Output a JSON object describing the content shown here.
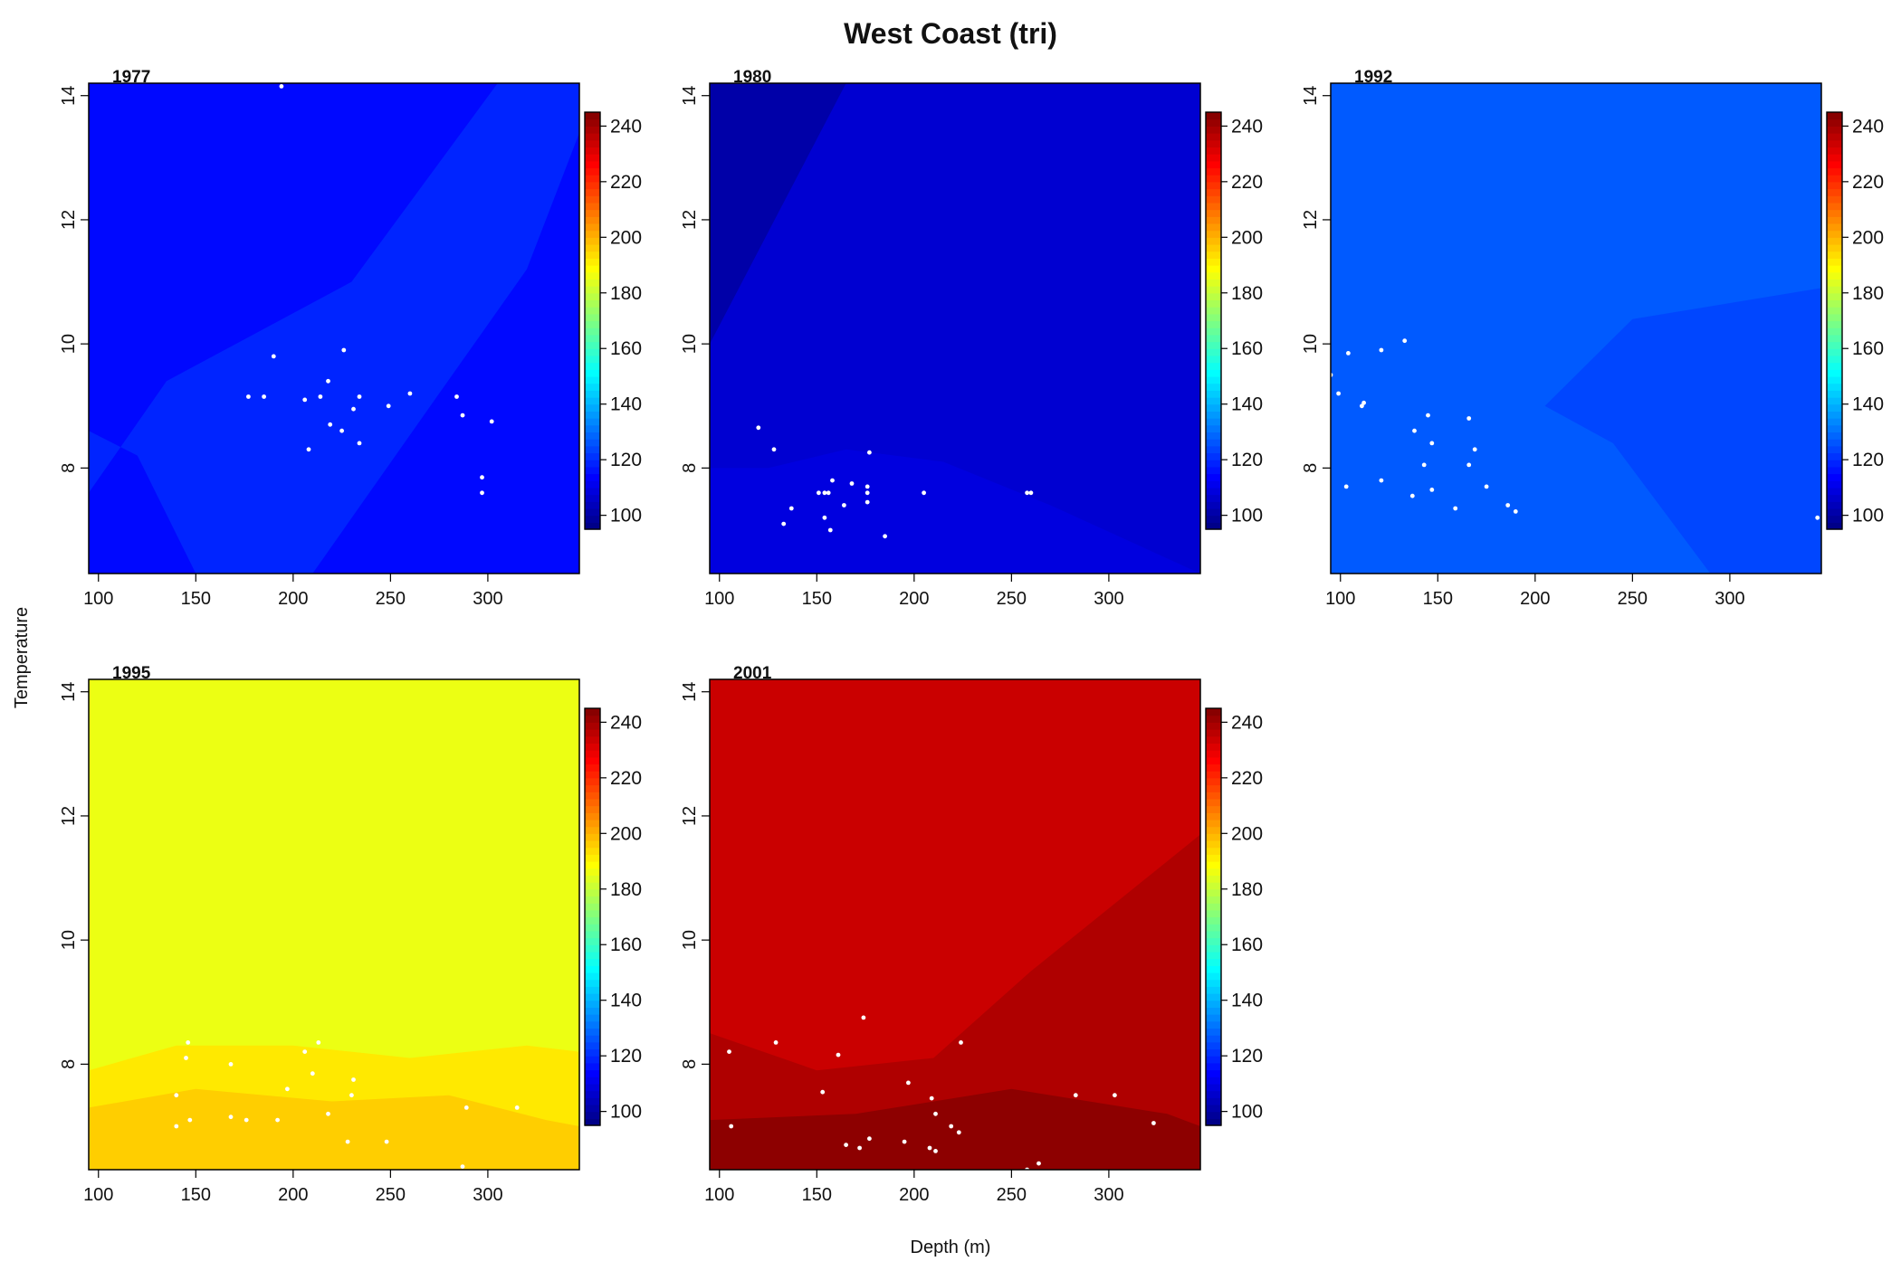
{
  "chart_data": {
    "type": "heatmap",
    "title": "West Coast (tri)",
    "xlabel": "Depth (m)",
    "ylabel": "Temperature",
    "xlim": [
      95,
      347
    ],
    "ylim": [
      6.3,
      14.2
    ],
    "x_ticks": [
      100,
      150,
      200,
      250,
      300
    ],
    "y_ticks": [
      8,
      10,
      12,
      14
    ],
    "colorbar": {
      "range": [
        95,
        245
      ],
      "ticks": [
        100,
        120,
        140,
        160,
        180,
        200,
        220,
        240
      ],
      "colormap": "jet"
    },
    "panels": [
      {
        "label": "1977",
        "base_value": 115,
        "band_value": 119,
        "band": [
          [
            95,
            7.6
          ],
          [
            135,
            9.4
          ],
          [
            230,
            11.0
          ],
          [
            305,
            14.2
          ],
          [
            347,
            14.2
          ],
          [
            347,
            13.4
          ],
          [
            320,
            11.2
          ],
          [
            275,
            9.2
          ],
          [
            210,
            6.3
          ],
          [
            150,
            6.3
          ],
          [
            120,
            8.2
          ],
          [
            95,
            8.6
          ]
        ],
        "points": [
          [
            194,
            14.15
          ],
          [
            190,
            9.8
          ],
          [
            226,
            9.9
          ],
          [
            218,
            9.4
          ],
          [
            177,
            9.15
          ],
          [
            185,
            9.15
          ],
          [
            206,
            9.1
          ],
          [
            214,
            9.15
          ],
          [
            234,
            9.15
          ],
          [
            260,
            9.2
          ],
          [
            284,
            9.15
          ],
          [
            249,
            9.0
          ],
          [
            231,
            8.95
          ],
          [
            287,
            8.85
          ],
          [
            302,
            8.75
          ],
          [
            219,
            8.7
          ],
          [
            225,
            8.6
          ],
          [
            234,
            8.4
          ],
          [
            208,
            8.3
          ],
          [
            297,
            7.85
          ],
          [
            297,
            7.6
          ]
        ]
      },
      {
        "label": "1980",
        "base_value": 107,
        "band_value": 109,
        "band": [
          [
            95,
            6.3
          ],
          [
            95,
            8.0
          ],
          [
            125,
            8.0
          ],
          [
            165,
            8.3
          ],
          [
            215,
            8.1
          ],
          [
            270,
            7.4
          ],
          [
            347,
            6.3
          ]
        ],
        "corner_value": 101,
        "corner": [
          [
            95,
            14.2
          ],
          [
            165,
            14.2
          ],
          [
            125,
            11.8
          ],
          [
            95,
            10.0
          ]
        ],
        "points": [
          [
            120,
            8.65
          ],
          [
            128,
            8.3
          ],
          [
            177,
            8.25
          ],
          [
            158,
            7.8
          ],
          [
            168,
            7.75
          ],
          [
            176,
            7.7
          ],
          [
            151,
            7.6
          ],
          [
            154,
            7.6
          ],
          [
            156,
            7.6
          ],
          [
            176,
            7.6
          ],
          [
            205,
            7.6
          ],
          [
            258,
            7.6
          ],
          [
            260,
            7.6
          ],
          [
            176,
            7.45
          ],
          [
            164,
            7.4
          ],
          [
            137,
            7.35
          ],
          [
            154,
            7.2
          ],
          [
            133,
            7.1
          ],
          [
            157,
            7.0
          ],
          [
            185,
            6.9
          ]
        ]
      },
      {
        "label": "1992",
        "base_value": 127,
        "band_value": 124,
        "band": [
          [
            205,
            9.0
          ],
          [
            250,
            10.4
          ],
          [
            347,
            10.9
          ],
          [
            347,
            6.3
          ],
          [
            290,
            6.3
          ],
          [
            240,
            8.4
          ]
        ],
        "points": [
          [
            133,
            10.05
          ],
          [
            121,
            9.9
          ],
          [
            104,
            9.85
          ],
          [
            95,
            9.5
          ],
          [
            99,
            9.2
          ],
          [
            112,
            9.05
          ],
          [
            111,
            9.0
          ],
          [
            145,
            8.85
          ],
          [
            166,
            8.8
          ],
          [
            138,
            8.6
          ],
          [
            147,
            8.4
          ],
          [
            169,
            8.3
          ],
          [
            143,
            8.05
          ],
          [
            166,
            8.05
          ],
          [
            121,
            7.8
          ],
          [
            103,
            7.7
          ],
          [
            175,
            7.7
          ],
          [
            147,
            7.65
          ],
          [
            137,
            7.55
          ],
          [
            186,
            7.4
          ],
          [
            159,
            7.35
          ],
          [
            190,
            7.3
          ],
          [
            345,
            7.2
          ]
        ]
      },
      {
        "label": "1995",
        "base_value": 186,
        "band_value": 192,
        "band": [
          [
            95,
            7.9
          ],
          [
            140,
            8.3
          ],
          [
            200,
            8.3
          ],
          [
            260,
            8.1
          ],
          [
            320,
            8.3
          ],
          [
            347,
            8.2
          ],
          [
            347,
            6.3
          ],
          [
            95,
            6.3
          ]
        ],
        "band2_value": 196,
        "band2": [
          [
            95,
            7.3
          ],
          [
            150,
            7.6
          ],
          [
            220,
            7.4
          ],
          [
            280,
            7.5
          ],
          [
            330,
            7.1
          ],
          [
            347,
            7.0
          ],
          [
            347,
            6.3
          ],
          [
            95,
            6.3
          ]
        ],
        "points": [
          [
            146,
            8.35
          ],
          [
            213,
            8.35
          ],
          [
            206,
            8.2
          ],
          [
            145,
            8.1
          ],
          [
            168,
            8.0
          ],
          [
            210,
            7.85
          ],
          [
            231,
            7.75
          ],
          [
            197,
            7.6
          ],
          [
            230,
            7.5
          ],
          [
            140,
            7.5
          ],
          [
            289,
            7.3
          ],
          [
            315,
            7.3
          ],
          [
            218,
            7.2
          ],
          [
            168,
            7.15
          ],
          [
            176,
            7.1
          ],
          [
            192,
            7.1
          ],
          [
            147,
            7.1
          ],
          [
            140,
            7.0
          ],
          [
            228,
            6.75
          ],
          [
            248,
            6.75
          ],
          [
            287,
            6.35
          ]
        ]
      },
      {
        "label": "2001",
        "base_value": 234,
        "band_value": 238,
        "band": [
          [
            95,
            8.5
          ],
          [
            150,
            7.9
          ],
          [
            210,
            8.1
          ],
          [
            260,
            9.5
          ],
          [
            347,
            11.7
          ],
          [
            347,
            6.3
          ],
          [
            95,
            6.3
          ]
        ],
        "band2_value": 243,
        "band2": [
          [
            95,
            7.1
          ],
          [
            170,
            7.2
          ],
          [
            250,
            7.6
          ],
          [
            330,
            7.2
          ],
          [
            347,
            7.0
          ],
          [
            347,
            6.3
          ],
          [
            95,
            6.3
          ]
        ],
        "points": [
          [
            174,
            8.75
          ],
          [
            224,
            8.35
          ],
          [
            129,
            8.35
          ],
          [
            105,
            8.2
          ],
          [
            161,
            8.15
          ],
          [
            197,
            7.7
          ],
          [
            153,
            7.55
          ],
          [
            283,
            7.5
          ],
          [
            303,
            7.5
          ],
          [
            209,
            7.45
          ],
          [
            211,
            7.2
          ],
          [
            106,
            7.0
          ],
          [
            219,
            7.0
          ],
          [
            223,
            6.9
          ],
          [
            323,
            7.05
          ],
          [
            177,
            6.8
          ],
          [
            195,
            6.75
          ],
          [
            165,
            6.7
          ],
          [
            172,
            6.65
          ],
          [
            208,
            6.65
          ],
          [
            211,
            6.6
          ],
          [
            264,
            6.4
          ],
          [
            258,
            6.3
          ]
        ]
      }
    ]
  }
}
